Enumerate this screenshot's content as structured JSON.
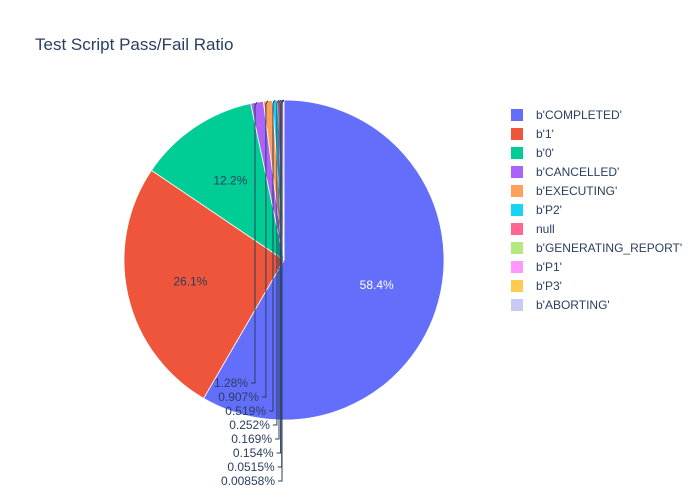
{
  "chart_data": {
    "type": "pie",
    "title": "Test Script Pass/Fail Ratio",
    "legend_position": "right",
    "slices": [
      {
        "label": "b'COMPLETED'",
        "value": 58.4,
        "percent_text": "58.4%",
        "color": "#636efa"
      },
      {
        "label": "b'1'",
        "value": 26.1,
        "percent_text": "26.1%",
        "color": "#EF553B"
      },
      {
        "label": "b'0'",
        "value": 12.2,
        "percent_text": "12.2%",
        "color": "#00cc96"
      },
      {
        "label": "b'CANCELLED'",
        "value": 1.28,
        "percent_text": "1.28%",
        "color": "#ab63fa"
      },
      {
        "label": "b'EXECUTING'",
        "value": 0.907,
        "percent_text": "0.907%",
        "color": "#FFA15A"
      },
      {
        "label": "b'P2'",
        "value": 0.519,
        "percent_text": "0.519%",
        "color": "#19d3f3"
      },
      {
        "label": "null",
        "value": 0.252,
        "percent_text": "0.252%",
        "color": "#FF6692"
      },
      {
        "label": "b'GENERATING_REPORT'",
        "value": 0.169,
        "percent_text": "0.169%",
        "color": "#B6E880"
      },
      {
        "label": "b'P1'",
        "value": 0.154,
        "percent_text": "0.154%",
        "color": "#FF97FF"
      },
      {
        "label": "b'P3'",
        "value": 0.0515,
        "percent_text": "0.0515%",
        "color": "#FECB52"
      },
      {
        "label": "b'ABORTING'",
        "value": 0.00858,
        "percent_text": "0.00858%",
        "color": "#c9c9f5"
      }
    ]
  }
}
